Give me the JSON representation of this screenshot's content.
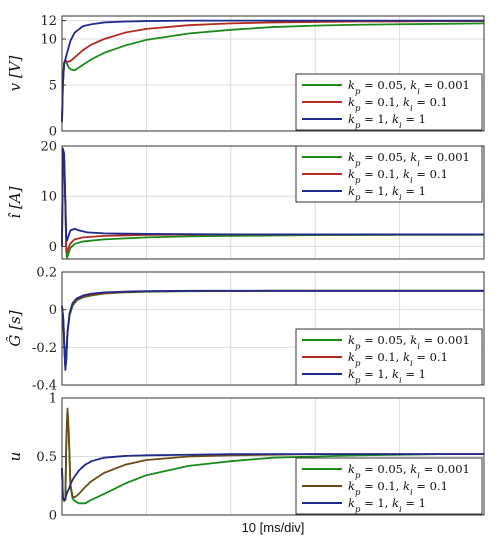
{
  "chart_data": [
    {
      "type": "line",
      "ylabel": "v [V]",
      "ylim": [
        0,
        12.5
      ],
      "yticks": [
        0,
        5,
        10,
        12
      ],
      "xlim": [
        0,
        10
      ],
      "grid": true,
      "legend_position": "bottom-right",
      "series": [
        {
          "name": "k_p = 0.05, k_i = 0.001",
          "color": "#1a8a1a",
          "x": [
            0,
            0.02,
            0.05,
            0.08,
            0.12,
            0.16,
            0.2,
            0.3,
            0.5,
            0.7,
            1,
            1.5,
            2,
            3,
            4,
            5,
            6,
            7,
            8,
            9,
            10
          ],
          "y": [
            1,
            5,
            7.3,
            7.6,
            7.3,
            6.9,
            6.7,
            6.6,
            7.2,
            7.8,
            8.5,
            9.3,
            9.9,
            10.6,
            11.0,
            11.3,
            11.45,
            11.55,
            11.6,
            11.65,
            11.7
          ]
        },
        {
          "name": "k_p = 0.1, k_i = 0.1",
          "color": "#b22a1e",
          "x": [
            0,
            0.02,
            0.05,
            0.08,
            0.12,
            0.2,
            0.3,
            0.5,
            0.7,
            1,
            1.5,
            2,
            3,
            4,
            5,
            6,
            7,
            8,
            9,
            10
          ],
          "y": [
            1,
            5,
            7.3,
            7.7,
            7.5,
            7.6,
            8.0,
            8.8,
            9.4,
            10.0,
            10.7,
            11.1,
            11.5,
            11.7,
            11.8,
            11.85,
            11.9,
            11.9,
            11.95,
            11.95
          ]
        },
        {
          "name": "k_p = 1, k_i = 1",
          "color": "#1f2a8c",
          "x": [
            0,
            0.02,
            0.05,
            0.08,
            0.12,
            0.2,
            0.3,
            0.5,
            0.7,
            1,
            1.5,
            2,
            3,
            4,
            5,
            6,
            7,
            8,
            9,
            10
          ],
          "y": [
            1,
            5,
            7.4,
            7.8,
            8.5,
            9.8,
            10.7,
            11.4,
            11.6,
            11.8,
            11.9,
            11.95,
            12.0,
            12.0,
            12.0,
            12.0,
            12.0,
            12.0,
            12.0,
            12.0
          ]
        }
      ],
      "legend": [
        "k_p = 0.05, k_i = 0.001",
        "k_p = 0.1, k_i = 0.1",
        "k_p = 1, k_i = 1"
      ]
    },
    {
      "type": "line",
      "ylabel": "î [A]",
      "ylim": [
        -2.5,
        20
      ],
      "yticks": [
        0,
        10,
        20
      ],
      "xlim": [
        0,
        10
      ],
      "grid": true,
      "legend_position": "top-right",
      "series": [
        {
          "name": "k_p = 0.05, k_i = 0.001",
          "color": "#1a8a1a",
          "x": [
            0,
            0.02,
            0.05,
            0.08,
            0.1,
            0.12,
            0.15,
            0.2,
            0.3,
            0.5,
            1,
            2,
            3,
            4,
            6,
            8,
            10
          ],
          "y": [
            0,
            18,
            17,
            8,
            -1,
            -2.3,
            -1.5,
            -0.3,
            0.5,
            1.0,
            1.4,
            1.8,
            2.0,
            2.1,
            2.25,
            2.3,
            2.3
          ]
        },
        {
          "name": "k_p = 0.1, k_i = 0.1",
          "color": "#b22a1e",
          "x": [
            0,
            0.02,
            0.05,
            0.08,
            0.1,
            0.12,
            0.15,
            0.2,
            0.3,
            0.5,
            1,
            2,
            3,
            4,
            6,
            8,
            10
          ],
          "y": [
            0,
            19,
            18,
            8,
            0,
            -1.2,
            -0.4,
            0.6,
            1.4,
            1.8,
            2.1,
            2.3,
            2.35,
            2.4,
            2.4,
            2.4,
            2.4
          ]
        },
        {
          "name": "k_p = 1, k_i = 1",
          "color": "#1f2a8c",
          "x": [
            0,
            0.02,
            0.05,
            0.08,
            0.1,
            0.12,
            0.15,
            0.2,
            0.3,
            0.4,
            0.6,
            1,
            2,
            3,
            4,
            6,
            8,
            10
          ],
          "y": [
            0,
            19.5,
            18.5,
            9,
            2,
            1.2,
            2.0,
            3.2,
            3.5,
            3.2,
            2.8,
            2.6,
            2.5,
            2.45,
            2.4,
            2.4,
            2.4,
            2.4
          ]
        }
      ],
      "legend": [
        "k_p = 0.05, k_i = 0.001",
        "k_p = 0.1, k_i = 0.1",
        "k_p = 1, k_i = 1"
      ]
    },
    {
      "type": "line",
      "ylabel": "Ĝ [s]",
      "ylim": [
        -0.4,
        0.2
      ],
      "yticks": [
        -0.4,
        -0.2,
        0,
        0.2
      ],
      "xlim": [
        0,
        10
      ],
      "grid": true,
      "legend_position": "bottom-right",
      "series": [
        {
          "name": "k_p = 0.05, k_i = 0.001",
          "color": "#1a8a1a",
          "x": [
            0,
            0.03,
            0.06,
            0.08,
            0.1,
            0.13,
            0.18,
            0.25,
            0.35,
            0.5,
            0.7,
            1,
            1.5,
            2,
            3,
            5,
            7,
            10
          ],
          "y": [
            0.02,
            -0.05,
            -0.22,
            -0.3,
            -0.25,
            -0.12,
            -0.03,
            0.02,
            0.05,
            0.065,
            0.075,
            0.085,
            0.092,
            0.095,
            0.098,
            0.1,
            0.1,
            0.1
          ]
        },
        {
          "name": "k_p = 0.1, k_i = 0.1",
          "color": "#b22a1e",
          "x": [
            0,
            0.03,
            0.06,
            0.08,
            0.1,
            0.13,
            0.18,
            0.25,
            0.35,
            0.5,
            0.7,
            1,
            1.5,
            2,
            3,
            5,
            7,
            10
          ],
          "y": [
            0.02,
            -0.05,
            -0.22,
            -0.31,
            -0.26,
            -0.12,
            -0.02,
            0.03,
            0.055,
            0.07,
            0.08,
            0.088,
            0.094,
            0.097,
            0.099,
            0.1,
            0.1,
            0.1
          ]
        },
        {
          "name": "k_p = 1, k_i = 1",
          "color": "#1f2a8c",
          "x": [
            0,
            0.03,
            0.06,
            0.08,
            0.1,
            0.13,
            0.18,
            0.25,
            0.35,
            0.5,
            0.7,
            1,
            1.5,
            2,
            3,
            5,
            7,
            10
          ],
          "y": [
            0.02,
            -0.05,
            -0.23,
            -0.32,
            -0.27,
            -0.12,
            -0.02,
            0.035,
            0.06,
            0.075,
            0.085,
            0.092,
            0.096,
            0.098,
            0.1,
            0.1,
            0.1,
            0.1
          ]
        }
      ],
      "legend": [
        "k_p = 0.05, k_i = 0.001",
        "k_p = 0.1, k_i = 0.1",
        "k_p = 1, k_i = 1"
      ]
    },
    {
      "type": "line",
      "ylabel": "u",
      "ylim": [
        0,
        1
      ],
      "yticks": [
        0,
        0.5,
        1
      ],
      "xlim": [
        0,
        10
      ],
      "xlabel": "10 [ms/div]",
      "grid": true,
      "legend_position": "bottom-right",
      "series": [
        {
          "name": "k_p = 0.05, k_i = 0.001",
          "color": "#1a8a1a",
          "x": [
            0,
            0.02,
            0.05,
            0.08,
            0.1,
            0.13,
            0.16,
            0.2,
            0.25,
            0.3,
            0.4,
            0.55,
            0.7,
            1,
            1.5,
            2,
            3,
            4,
            5,
            6,
            7,
            8,
            9,
            10
          ],
          "y": [
            0.4,
            0.15,
            0.12,
            0.13,
            0.6,
            0.91,
            0.7,
            0.25,
            0.14,
            0.12,
            0.1,
            0.1,
            0.13,
            0.18,
            0.27,
            0.34,
            0.42,
            0.46,
            0.49,
            0.5,
            0.51,
            0.515,
            0.52,
            0.52
          ]
        },
        {
          "name": "k_p = 0.1, k_i = 0.1",
          "color": "#6e4a14",
          "x": [
            0,
            0.02,
            0.05,
            0.08,
            0.1,
            0.13,
            0.16,
            0.2,
            0.25,
            0.3,
            0.4,
            0.55,
            0.7,
            1,
            1.5,
            2,
            3,
            4,
            5,
            6,
            7,
            8,
            9,
            10
          ],
          "y": [
            0.4,
            0.15,
            0.12,
            0.13,
            0.6,
            0.9,
            0.7,
            0.26,
            0.16,
            0.15,
            0.18,
            0.24,
            0.29,
            0.36,
            0.43,
            0.47,
            0.5,
            0.51,
            0.515,
            0.52,
            0.52,
            0.52,
            0.52,
            0.52
          ]
        },
        {
          "name": "k_p = 1, k_i = 1",
          "color": "#1f2a8c",
          "x": [
            0,
            0.02,
            0.05,
            0.08,
            0.1,
            0.13,
            0.16,
            0.2,
            0.25,
            0.3,
            0.4,
            0.55,
            0.7,
            1,
            1.5,
            2,
            3,
            4,
            5,
            6,
            7,
            8,
            9,
            10
          ],
          "y": [
            0.4,
            0.15,
            0.13,
            0.14,
            0.17,
            0.2,
            0.22,
            0.26,
            0.3,
            0.33,
            0.38,
            0.43,
            0.46,
            0.49,
            0.505,
            0.51,
            0.515,
            0.52,
            0.52,
            0.52,
            0.52,
            0.52,
            0.52,
            0.52
          ]
        }
      ],
      "legend": [
        "k_p = 0.05, k_i = 0.001",
        "k_p = 0.1, k_i = 0.1",
        "k_p = 1, k_i = 1"
      ]
    }
  ]
}
